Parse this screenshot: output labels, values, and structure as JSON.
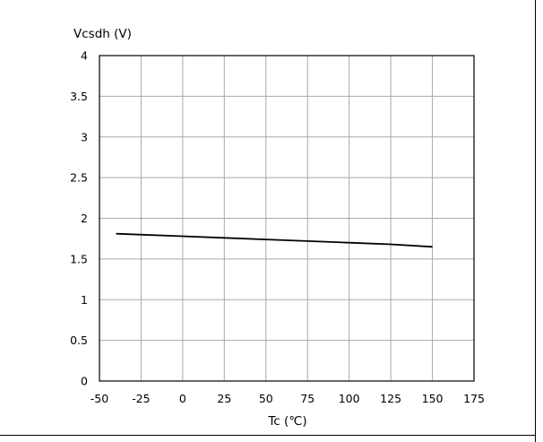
{
  "chart_data": {
    "type": "line",
    "title": "",
    "ylabel": "Vcsdh (V)",
    "xlabel": "Tc (℃)",
    "xlim": [
      -50,
      175
    ],
    "ylim": [
      0,
      4
    ],
    "x_ticks": [
      -50,
      -25,
      0,
      25,
      50,
      75,
      100,
      125,
      150,
      175
    ],
    "y_ticks": [
      0,
      0.5,
      1,
      1.5,
      2,
      2.5,
      3,
      3.5,
      4
    ],
    "x_tick_labels": [
      "-50",
      "-25",
      "0",
      "25",
      "50",
      "75",
      "100",
      "125",
      "150",
      "175"
    ],
    "y_tick_labels": [
      "0",
      "0.5",
      "1",
      "1.5",
      "2",
      "2.5",
      "3",
      "3.5",
      "4"
    ],
    "grid": true,
    "series": [
      {
        "color": "#000000",
        "x": [
          -40,
          0,
          25,
          50,
          75,
          100,
          125,
          150
        ],
        "y": [
          1.81,
          1.78,
          1.76,
          1.74,
          1.72,
          1.7,
          1.68,
          1.65
        ]
      }
    ]
  }
}
